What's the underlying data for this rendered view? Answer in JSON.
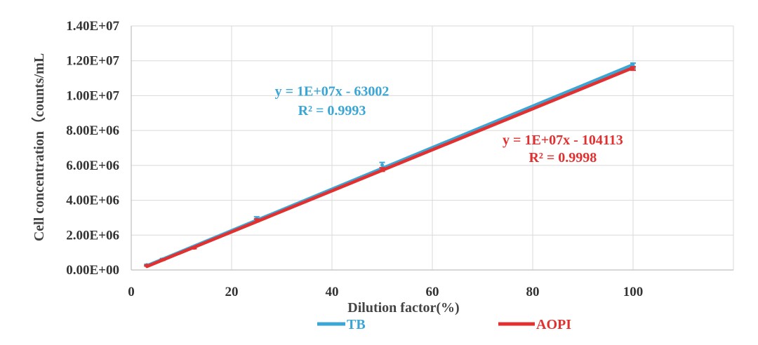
{
  "chart_data": {
    "type": "line",
    "title": "",
    "xlabel": "Dilution factor(%)",
    "ylabel": "Cell concentration（counts/mL",
    "xlim": [
      0,
      120
    ],
    "ylim": [
      0,
      14000000
    ],
    "x_ticks": [
      "0",
      "20",
      "40",
      "60",
      "80",
      "100"
    ],
    "x_tick_values": [
      0,
      20,
      40,
      60,
      80,
      100
    ],
    "y_ticks": [
      "0.00E+00",
      "2.00E+06",
      "4.00E+06",
      "6.00E+06",
      "8.00E+06",
      "1.00E+07",
      "1.20E+07",
      "1.40E+07"
    ],
    "y_tick_values": [
      0,
      2000000,
      4000000,
      6000000,
      8000000,
      10000000,
      12000000,
      14000000
    ],
    "grid": true,
    "legend_position": "bottom",
    "series": [
      {
        "name": "TB",
        "color": "#3aa6d6",
        "x": [
          3.125,
          6.25,
          12.5,
          25,
          50,
          100
        ],
        "y": [
          290000,
          620000,
          1320000,
          2950000,
          6020000,
          11720000
        ],
        "error": [
          40000,
          40000,
          50000,
          100000,
          150000,
          150000
        ],
        "trendline": {
          "equation": "y = 1E+07x - 63002",
          "r2": "R² = 0.9993",
          "x_start": 3.125,
          "y_start": 250000,
          "x_end": 100,
          "y_end": 11780000
        }
      },
      {
        "name": "AOPI",
        "color": "#e23030",
        "x": [
          3.125,
          6.25,
          12.5,
          25,
          50,
          100
        ],
        "y": [
          250000,
          580000,
          1260000,
          2850000,
          5760000,
          11560000
        ],
        "error": [
          30000,
          30000,
          40000,
          80000,
          100000,
          100000
        ],
        "trendline": {
          "equation": "y = 1E+07x - 104113",
          "r2": "R² = 0.9998",
          "x_start": 3.125,
          "y_start": 200000,
          "x_end": 100,
          "y_end": 11600000
        }
      }
    ],
    "annotations": [
      {
        "series": "TB",
        "text": "y = 1E+07x - 63002",
        "x": 40,
        "y": 10000000
      },
      {
        "series": "TB",
        "text": "R² = 0.9993",
        "x": 40,
        "y": 8900000
      },
      {
        "series": "AOPI",
        "text": "y = 1E+07x - 104113",
        "x": 86,
        "y": 7200000
      },
      {
        "series": "AOPI",
        "text": "R² = 0.9998",
        "x": 86,
        "y": 6200000
      }
    ]
  }
}
